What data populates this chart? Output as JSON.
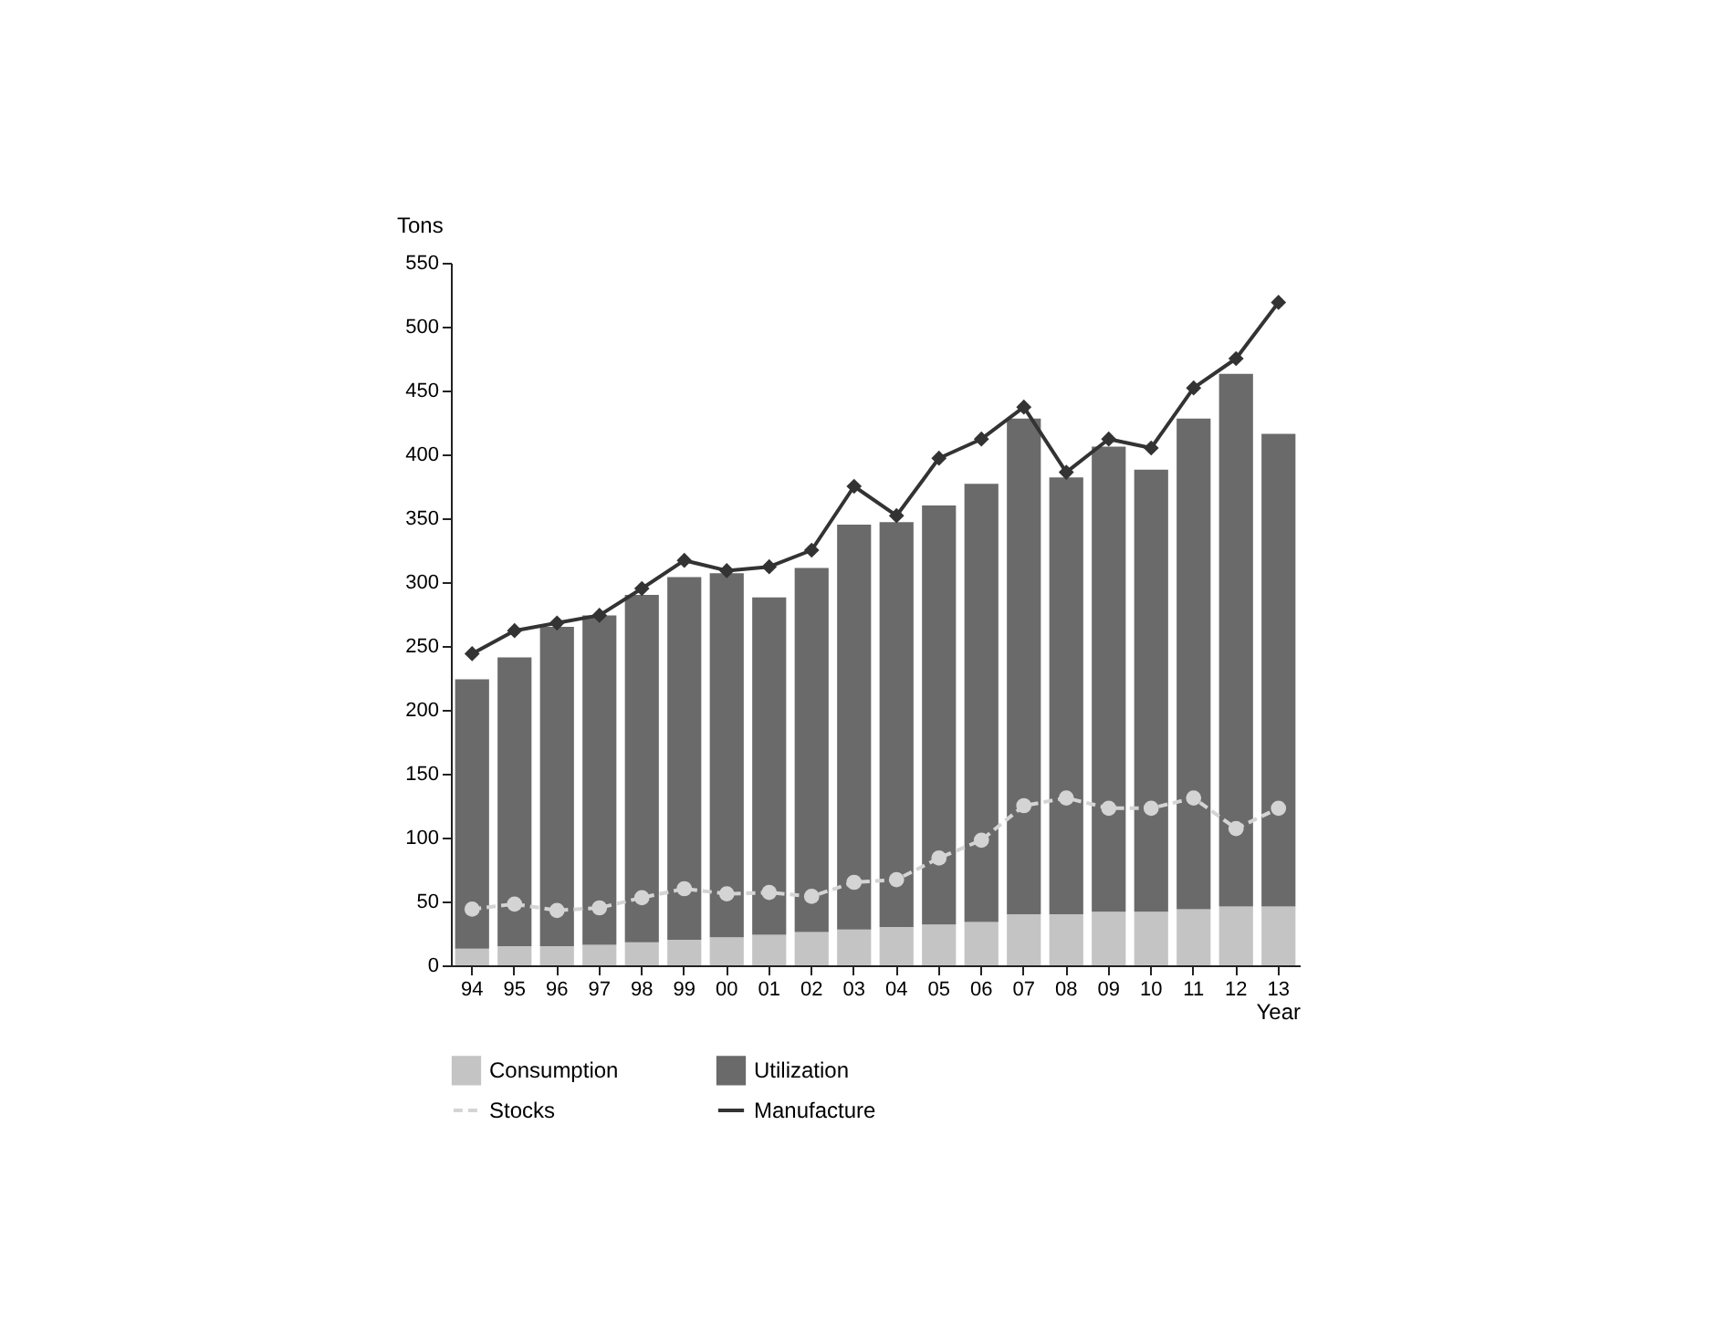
{
  "chart_data": {
    "type": "bar",
    "stacked": true,
    "ylabel": "Tons",
    "xlabel": "Year",
    "categories": [
      "94",
      "95",
      "96",
      "97",
      "98",
      "99",
      "00",
      "01",
      "02",
      "03",
      "04",
      "05",
      "06",
      "07",
      "08",
      "09",
      "10",
      "11",
      "12",
      "13"
    ],
    "series": [
      {
        "name": "Consumption",
        "color": "#c4c4c4",
        "values": [
          13,
          15,
          15,
          16,
          18,
          20,
          22,
          24,
          26,
          28,
          30,
          32,
          34,
          40,
          40,
          42,
          42,
          44,
          46,
          46
        ]
      },
      {
        "name": "Utilization",
        "color": "#6a6a6a",
        "values": [
          211,
          226,
          250,
          258,
          272,
          284,
          285,
          264,
          285,
          317,
          317,
          328,
          343,
          388,
          342,
          364,
          346,
          384,
          417,
          370
        ]
      },
      {
        "name": "Stocks",
        "type": "line",
        "color": "#d4d4d4",
        "marker": "circle",
        "line_style": "dashed",
        "values": [
          44,
          48,
          43,
          45,
          53,
          60,
          56,
          57,
          54,
          65,
          67,
          84,
          98,
          125,
          131,
          123,
          123,
          131,
          107,
          123
        ]
      },
      {
        "name": "Manufacture",
        "type": "line",
        "color": "#333333",
        "marker": "diamond",
        "line_style": "solid",
        "values": [
          244,
          262,
          268,
          274,
          295,
          317,
          309,
          312,
          325,
          375,
          352,
          397,
          412,
          437,
          386,
          412,
          405,
          452,
          475,
          519
        ]
      }
    ],
    "ylim": [
      0,
      550
    ],
    "yticks": [
      0,
      50,
      100,
      150,
      200,
      250,
      300,
      350,
      400,
      450,
      500,
      550
    ],
    "grid": false,
    "legend": "bottom"
  }
}
